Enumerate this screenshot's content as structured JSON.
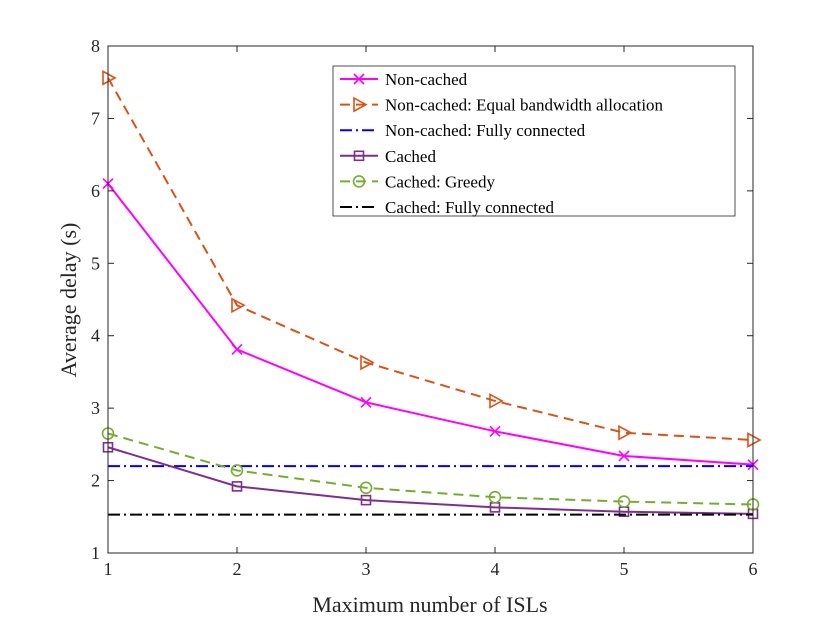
{
  "chart_data": {
    "type": "line",
    "title": "",
    "xlabel": "Maximum number of ISLs",
    "ylabel": "Average delay (s)",
    "xlim": [
      1,
      6
    ],
    "ylim": [
      1,
      8
    ],
    "xticks": [
      1,
      2,
      3,
      4,
      5,
      6
    ],
    "yticks": [
      1,
      2,
      3,
      4,
      5,
      6,
      7,
      8
    ],
    "x": [
      1,
      2,
      3,
      4,
      5,
      6
    ],
    "grid": false,
    "legend_position": "top-right",
    "series": [
      {
        "name": "Non-cached",
        "values": [
          6.1,
          3.81,
          3.08,
          2.68,
          2.34,
          2.22
        ],
        "color": "#ff00ff",
        "dash": "solid",
        "marker": "x"
      },
      {
        "name": "Non-cached: Equal bandwidth allocation",
        "values": [
          7.56,
          4.42,
          3.63,
          3.1,
          2.66,
          2.56
        ],
        "color": "#d95319",
        "dash": "dashed",
        "marker": "triangle-right"
      },
      {
        "name": "Non-cached: Fully connected",
        "values": [
          2.2,
          2.2,
          2.2,
          2.2,
          2.2,
          2.2
        ],
        "color": "#0000ff",
        "dash": "dashdot",
        "marker": "none"
      },
      {
        "name": "Cached",
        "values": [
          2.46,
          1.92,
          1.73,
          1.63,
          1.57,
          1.54
        ],
        "color": "#7e2f8e",
        "dash": "solid",
        "marker": "square"
      },
      {
        "name": "Cached: Greedy",
        "values": [
          2.65,
          2.14,
          1.9,
          1.77,
          1.71,
          1.67
        ],
        "color": "#77ac30",
        "dash": "dashed",
        "marker": "circle"
      },
      {
        "name": "Cached: Fully connected",
        "values": [
          1.53,
          1.53,
          1.53,
          1.53,
          1.53,
          1.53
        ],
        "color": "#000000",
        "dash": "dashdot",
        "marker": "none"
      }
    ]
  }
}
